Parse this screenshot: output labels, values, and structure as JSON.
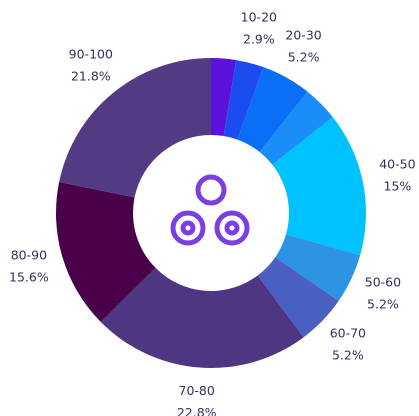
{
  "chart_data": {
    "type": "donut",
    "categories": [
      null,
      "10-20",
      "20-30",
      null,
      "40-50",
      "50-60",
      "60-70",
      "70-80",
      "80-90",
      "90-100"
    ],
    "values": [
      2.6,
      2.9,
      5.2,
      3.7,
      15,
      5.2,
      5.2,
      22.8,
      15.6,
      21.8
    ],
    "value_labels": [
      null,
      "2.9%",
      "5.2%",
      null,
      "15%",
      "5.2%",
      "5.2%",
      "22.8%",
      "15.6%",
      "21.8%"
    ],
    "colors": [
      "#5a12dc",
      "#1b4cf0",
      "#0b6ef6",
      "#1a8ef8",
      "#00c2ff",
      "#2c94e2",
      "#4a60c0",
      "#4e3682",
      "#4a0049",
      "#533b84"
    ]
  }
}
